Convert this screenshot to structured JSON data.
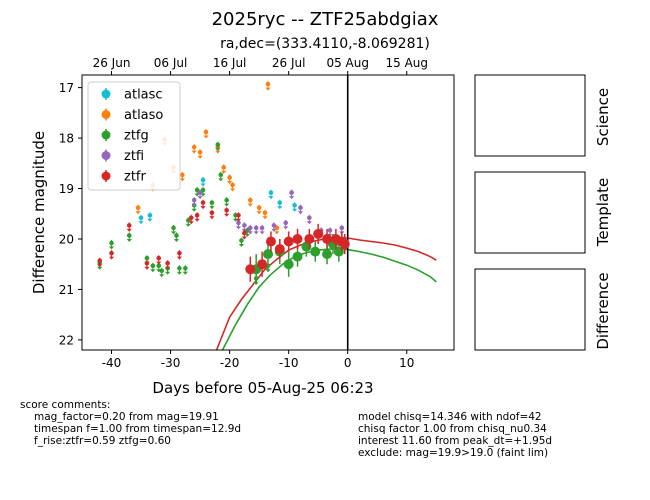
{
  "header": {
    "title": "2025ryc -- ZTF25abdgiax",
    "subtitle": "ra,dec=(333.4110,-8.069281)"
  },
  "panels": {
    "science": "Science",
    "template": "Template",
    "difference": "Difference"
  },
  "comments_left": [
    "score comments:",
    "mag_factor=0.20 from mag=19.91",
    "timespan f=1.00 from timespan=12.9d",
    "f_rise:ztfr=0.59 ztfg=0.60"
  ],
  "comments_right": [
    "model chisq=14.346 with ndof=42",
    "chisq factor 1.00 from chisq_nu0.34",
    "interest 11.60 from peak_dt=+1.95d",
    "exclude: mag=19.9>19.0 (faint lim)"
  ],
  "chart_data": {
    "type": "scatter",
    "xlabel": "Days before 05-Aug-25 06:23",
    "ylabel": "Difference magnitude",
    "xlim": [
      -45,
      18
    ],
    "ylim": [
      22.2,
      16.75
    ],
    "y_inverted": true,
    "x_ticks": [
      -40,
      -30,
      -20,
      -10,
      0,
      10
    ],
    "y_ticks": [
      17,
      18,
      19,
      20,
      21,
      22
    ],
    "top_axis_ticks": [
      {
        "label": "26 Jun",
        "x": -40
      },
      {
        "label": "06 Jul",
        "x": -30
      },
      {
        "label": "16 Jul",
        "x": -20
      },
      {
        "label": "26 Jul",
        "x": -10
      },
      {
        "label": "05 Aug",
        "x": 0
      },
      {
        "label": "15 Aug",
        "x": 10
      }
    ],
    "vline_x": 0,
    "legend_position": "top-left",
    "series": [
      {
        "name": "atlasc",
        "color": "#17becf",
        "kind": "upper_limit",
        "points": [
          [
            -35,
            19.6
          ],
          [
            -33.5,
            19.55
          ],
          [
            -24.5,
            18.85
          ],
          [
            -13,
            19.1
          ],
          [
            -11.5,
            19.3
          ],
          [
            -9,
            19.35
          ]
        ]
      },
      {
        "name": "atlaso",
        "color": "#ff7f0e",
        "kind": "upper_limit",
        "points": [
          [
            -35.5,
            19.4
          ],
          [
            -33,
            18.95
          ],
          [
            -31,
            18.05
          ],
          [
            -29.5,
            18.6
          ],
          [
            -28,
            18.75
          ],
          [
            -26,
            18.2
          ],
          [
            -25,
            18.3
          ],
          [
            -24,
            17.9
          ],
          [
            -22,
            18.2
          ],
          [
            -21,
            18.6
          ],
          [
            -20,
            18.8
          ],
          [
            -19.5,
            18.95
          ],
          [
            -16.5,
            19.25
          ],
          [
            -15,
            19.4
          ],
          [
            -14,
            19.5
          ],
          [
            -13.5,
            16.95
          ],
          [
            -12,
            19.8
          ]
        ]
      },
      {
        "name": "ztfg",
        "color": "#2ca02c",
        "kind": "upper_limit",
        "points": [
          [
            -42,
            20.5
          ],
          [
            -40,
            20.1
          ],
          [
            -37,
            19.95
          ],
          [
            -34,
            20.4
          ],
          [
            -33,
            20.55
          ],
          [
            -32,
            20.55
          ],
          [
            -31.5,
            20.65
          ],
          [
            -30.5,
            20.6
          ],
          [
            -29.5,
            19.8
          ],
          [
            -29,
            19.95
          ],
          [
            -28.5,
            20.6
          ],
          [
            -27.5,
            20.6
          ],
          [
            -27,
            19.65
          ],
          [
            -26,
            19.35
          ],
          [
            -25.5,
            19.05
          ],
          [
            -24.5,
            19.05
          ],
          [
            -23,
            19.3
          ],
          [
            -22,
            18.15
          ],
          [
            -21.5,
            18.75
          ],
          [
            -20.5,
            19.25
          ],
          [
            -19,
            19.55
          ],
          [
            -18,
            20.05
          ],
          [
            -17,
            19.85
          ],
          [
            -15.5,
            20.8
          ],
          [
            -13.5,
            20.55
          ]
        ]
      },
      {
        "name": "ztfg_det",
        "color": "#2ca02c",
        "kind": "detection",
        "points": [
          [
            -15.5,
            20.6,
            0.3
          ],
          [
            -13.5,
            20.3,
            0.3
          ],
          [
            -11.5,
            20.25,
            0.25
          ],
          [
            -10,
            20.5,
            0.25
          ],
          [
            -8.5,
            20.35,
            0.2
          ],
          [
            -7,
            20.15,
            0.2
          ],
          [
            -5.5,
            20.25,
            0.2
          ],
          [
            -3.5,
            20.3,
            0.2
          ],
          [
            -2.5,
            20.1,
            0.2
          ],
          [
            -1.5,
            20.25,
            0.2
          ]
        ]
      },
      {
        "name": "ztfi",
        "color": "#9467bd",
        "kind": "upper_limit",
        "points": [
          [
            -26,
            19.25
          ],
          [
            -25,
            19.1
          ],
          [
            -18.5,
            19.7
          ],
          [
            -17.5,
            19.75
          ],
          [
            -16.5,
            19.8
          ],
          [
            -15.5,
            19.8
          ],
          [
            -14.5,
            19.8
          ],
          [
            -12.5,
            19.75
          ],
          [
            -10.5,
            19.7
          ],
          [
            -9.5,
            19.1
          ],
          [
            -8,
            19.4
          ],
          [
            -6.5,
            19.6
          ],
          [
            -4.5,
            19.85
          ],
          [
            -3,
            19.85
          ],
          [
            -1,
            19.8
          ]
        ]
      },
      {
        "name": "ztfr",
        "color": "#d62728",
        "kind": "upper_limit",
        "points": [
          [
            -42,
            20.45
          ],
          [
            -40,
            20.3
          ],
          [
            -37,
            19.75
          ],
          [
            -34,
            20.5
          ],
          [
            -32,
            20.4
          ],
          [
            -30.5,
            20.5
          ],
          [
            -28.5,
            20.3
          ],
          [
            -26.5,
            19.6
          ],
          [
            -25.5,
            19.55
          ],
          [
            -24.5,
            19.3
          ],
          [
            -23,
            19.5
          ],
          [
            -20.5,
            19.45
          ],
          [
            -18.5,
            19.55
          ],
          [
            -17.5,
            19.9
          ]
        ]
      },
      {
        "name": "ztfr_det",
        "color": "#d62728",
        "kind": "detection",
        "points": [
          [
            -16.5,
            20.6,
            0.25
          ],
          [
            -14.5,
            20.5,
            0.25
          ],
          [
            -13,
            20.05,
            0.2
          ],
          [
            -11.5,
            20.2,
            0.2
          ],
          [
            -10,
            20.05,
            0.2
          ],
          [
            -8.5,
            20.0,
            0.2
          ],
          [
            -6.5,
            20.0,
            0.2
          ],
          [
            -5,
            19.9,
            0.2
          ],
          [
            -3.5,
            20.0,
            0.2
          ],
          [
            -2,
            20.0,
            0.2
          ],
          [
            -1,
            20.05,
            0.2
          ],
          [
            -0.5,
            20.1,
            0.2
          ]
        ]
      }
    ],
    "models": [
      {
        "name": "ztfr_model",
        "color": "#d62728",
        "points": [
          [
            -22.2,
            22.2
          ],
          [
            -20,
            21.55
          ],
          [
            -18,
            21.2
          ],
          [
            -16,
            20.9
          ],
          [
            -14,
            20.6
          ],
          [
            -12,
            20.4
          ],
          [
            -10,
            20.22
          ],
          [
            -8,
            20.12
          ],
          [
            -6,
            20.05
          ],
          [
            -4,
            20.0
          ],
          [
            -2,
            19.98
          ],
          [
            0,
            19.98
          ],
          [
            2,
            20.02
          ],
          [
            4,
            20.05
          ],
          [
            6,
            20.08
          ],
          [
            8,
            20.12
          ],
          [
            10,
            20.18
          ],
          [
            12,
            20.25
          ],
          [
            14,
            20.35
          ],
          [
            15,
            20.42
          ]
        ]
      },
      {
        "name": "ztfg_model",
        "color": "#2ca02c",
        "points": [
          [
            -21.2,
            22.2
          ],
          [
            -19,
            21.7
          ],
          [
            -17,
            21.3
          ],
          [
            -15,
            20.95
          ],
          [
            -13,
            20.7
          ],
          [
            -11,
            20.5
          ],
          [
            -9,
            20.35
          ],
          [
            -7,
            20.27
          ],
          [
            -5,
            20.22
          ],
          [
            -3,
            20.2
          ],
          [
            -1,
            20.2
          ],
          [
            0,
            20.21
          ],
          [
            2,
            20.25
          ],
          [
            4,
            20.3
          ],
          [
            6,
            20.36
          ],
          [
            8,
            20.44
          ],
          [
            10,
            20.52
          ],
          [
            12,
            20.62
          ],
          [
            14,
            20.75
          ],
          [
            15,
            20.85
          ]
        ]
      }
    ]
  }
}
